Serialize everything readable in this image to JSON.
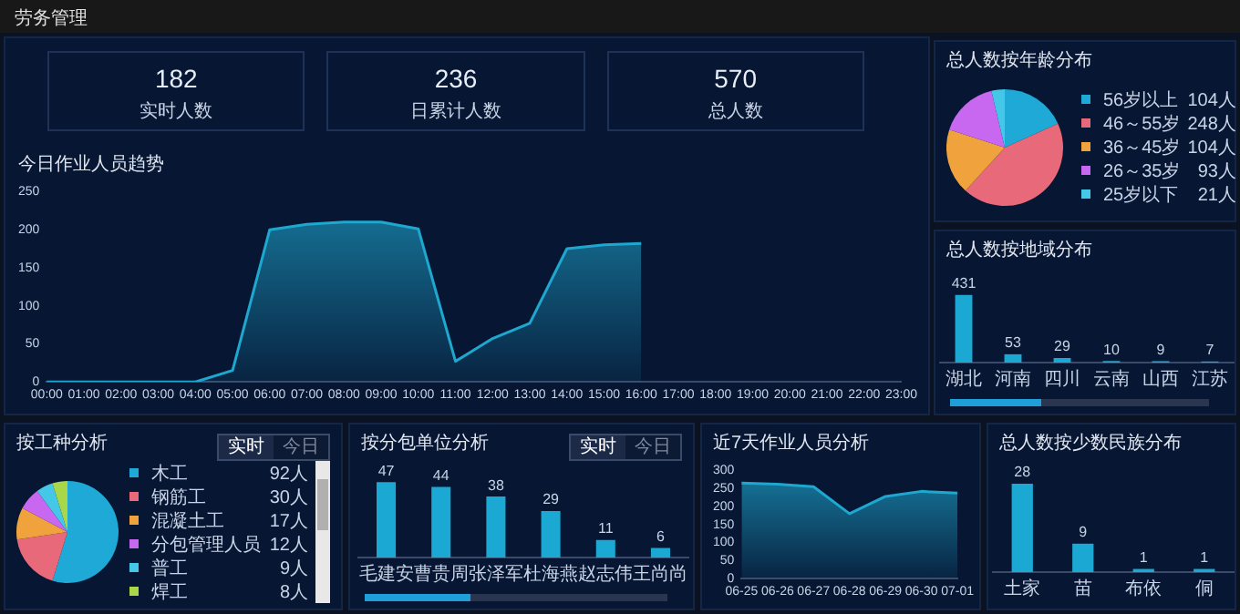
{
  "chart_data": [
    {
      "type": "other",
      "title": "劳务管理",
      "categories": [
        "实时人数",
        "日累计人数",
        "总人数"
      ],
      "values": [
        182,
        236,
        570
      ],
      "data_labels": true
    },
    {
      "type": "area",
      "title": "今日作业人员趋势",
      "categories": [
        "00:00",
        "01:00",
        "02:00",
        "03:00",
        "04:00",
        "05:00",
        "06:00",
        "07:00",
        "08:00",
        "09:00",
        "10:00",
        "11:00",
        "12:00",
        "13:00",
        "14:00",
        "15:00",
        "16:00",
        "17:00",
        "18:00",
        "19:00",
        "20:00",
        "21:00",
        "22:00",
        "23:00"
      ],
      "values": [
        0,
        0,
        0,
        0,
        0,
        15,
        200,
        207,
        210,
        210,
        201,
        27,
        57,
        77,
        175,
        180,
        182,
        null,
        null,
        null,
        null,
        null,
        null,
        null
      ],
      "color": "#1ea7cf",
      "ylim": [
        0,
        250
      ],
      "yticks": [
        0,
        50,
        100,
        150,
        200,
        250
      ]
    },
    {
      "type": "pie",
      "title": "总人数按年龄分布",
      "categories": [
        "56岁以上",
        "46～55岁",
        "36～45岁",
        "26～35岁",
        "25岁以下"
      ],
      "values": [
        104,
        248,
        104,
        93,
        21
      ],
      "value_labels": [
        "104人",
        "248人",
        "104人",
        "93人",
        "21人"
      ],
      "colors": [
        "#1fa9d6",
        "#e8697a",
        "#f0a33c",
        "#c867f0",
        "#45c8e8"
      ],
      "legend": "right"
    },
    {
      "type": "bar",
      "title": "总人数按地域分布",
      "categories": [
        "湖北",
        "河南",
        "四川",
        "云南",
        "山西",
        "江苏"
      ],
      "values": [
        431,
        53,
        29,
        10,
        9,
        7
      ],
      "color": "#1ba8d2",
      "data_labels": true,
      "tick_labels": "x"
    },
    {
      "type": "pie",
      "title": "按工种分析",
      "categories": [
        "木工",
        "钢筋工",
        "混凝土工",
        "分包管理人员",
        "普工",
        "焊工"
      ],
      "values": [
        92,
        30,
        17,
        12,
        9,
        8
      ],
      "value_labels": [
        "92人",
        "30人",
        "17人",
        "12人",
        "9人",
        "8人"
      ],
      "colors": [
        "#1fa9d6",
        "#e8697a",
        "#f0a33c",
        "#c867f0",
        "#45c8e8",
        "#a8d84a"
      ],
      "legend": "right",
      "annotations": [
        "实时",
        "今日"
      ]
    },
    {
      "type": "bar",
      "title": "按分包单位分析",
      "categories": [
        "毛建安",
        "曹贵周",
        "张泽军",
        "杜海燕",
        "赵志伟",
        "王尚尚"
      ],
      "values": [
        47,
        44,
        38,
        29,
        11,
        6
      ],
      "color": "#1ba8d2",
      "data_labels": true,
      "tick_labels": "x",
      "annotations": [
        "实时",
        "今日"
      ]
    },
    {
      "type": "area",
      "title": "近7天作业人员分析",
      "categories": [
        "06-25",
        "06-26",
        "06-27",
        "06-28",
        "06-29",
        "06-30",
        "07-01"
      ],
      "values": [
        265,
        262,
        255,
        180,
        228,
        242,
        237
      ],
      "color": "#1ea7cf",
      "ylim": [
        0,
        300
      ],
      "yticks": [
        0,
        50,
        100,
        150,
        200,
        250,
        300
      ]
    },
    {
      "type": "bar",
      "title": "总人数按少数民族分布",
      "categories": [
        "土家",
        "苗",
        "布依",
        "侗"
      ],
      "values": [
        28,
        9,
        1,
        1
      ],
      "color": "#1ba8d2",
      "data_labels": true,
      "tick_labels": "x"
    }
  ]
}
